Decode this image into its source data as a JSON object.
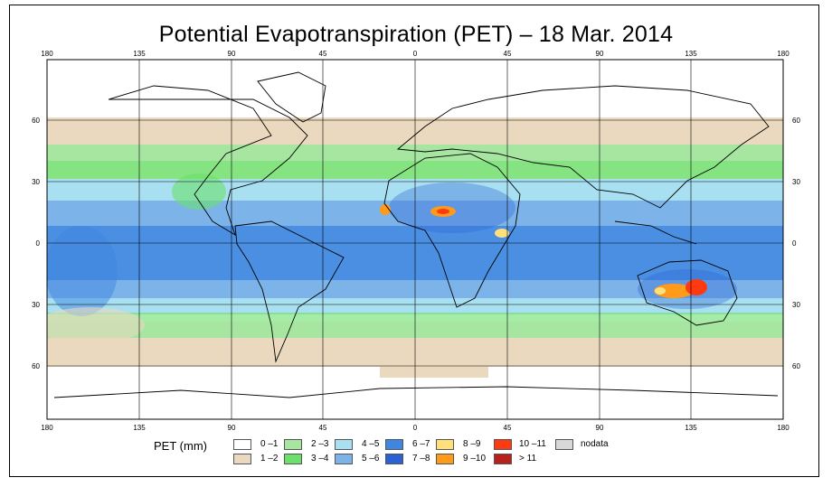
{
  "title": "Potential Evapotranspiration (PET) – 18 Mar. 2014",
  "axes": {
    "lon_ticks": [
      "180",
      "135",
      "90",
      "45",
      "0",
      "45",
      "90",
      "135",
      "180"
    ],
    "lat_ticks": [
      "60",
      "30",
      "0",
      "30",
      "60"
    ]
  },
  "legend": {
    "title": "PET (mm)",
    "items": [
      {
        "label": "0 –1",
        "color": "#ffffff"
      },
      {
        "label": "1 –2",
        "color": "#ead9bf"
      },
      {
        "label": "2 –3",
        "color": "#a6e6a0"
      },
      {
        "label": "3 –4",
        "color": "#6be06a"
      },
      {
        "label": "4 –5",
        "color": "#a8e0f2"
      },
      {
        "label": "5 –6",
        "color": "#7cb4ea"
      },
      {
        "label": "6 –7",
        "color": "#3f86e0"
      },
      {
        "label": "7 –8",
        "color": "#2a62d6"
      },
      {
        "label": "8 –9",
        "color": "#ffe07a"
      },
      {
        "label": "9 –10",
        "color": "#ff9a1a"
      },
      {
        "label": "10 –11",
        "color": "#ff3a10"
      },
      {
        "label": "> 11",
        "color": "#b8201a"
      },
      {
        "label": "nodata",
        "color": "#d8d8d8"
      }
    ]
  }
}
